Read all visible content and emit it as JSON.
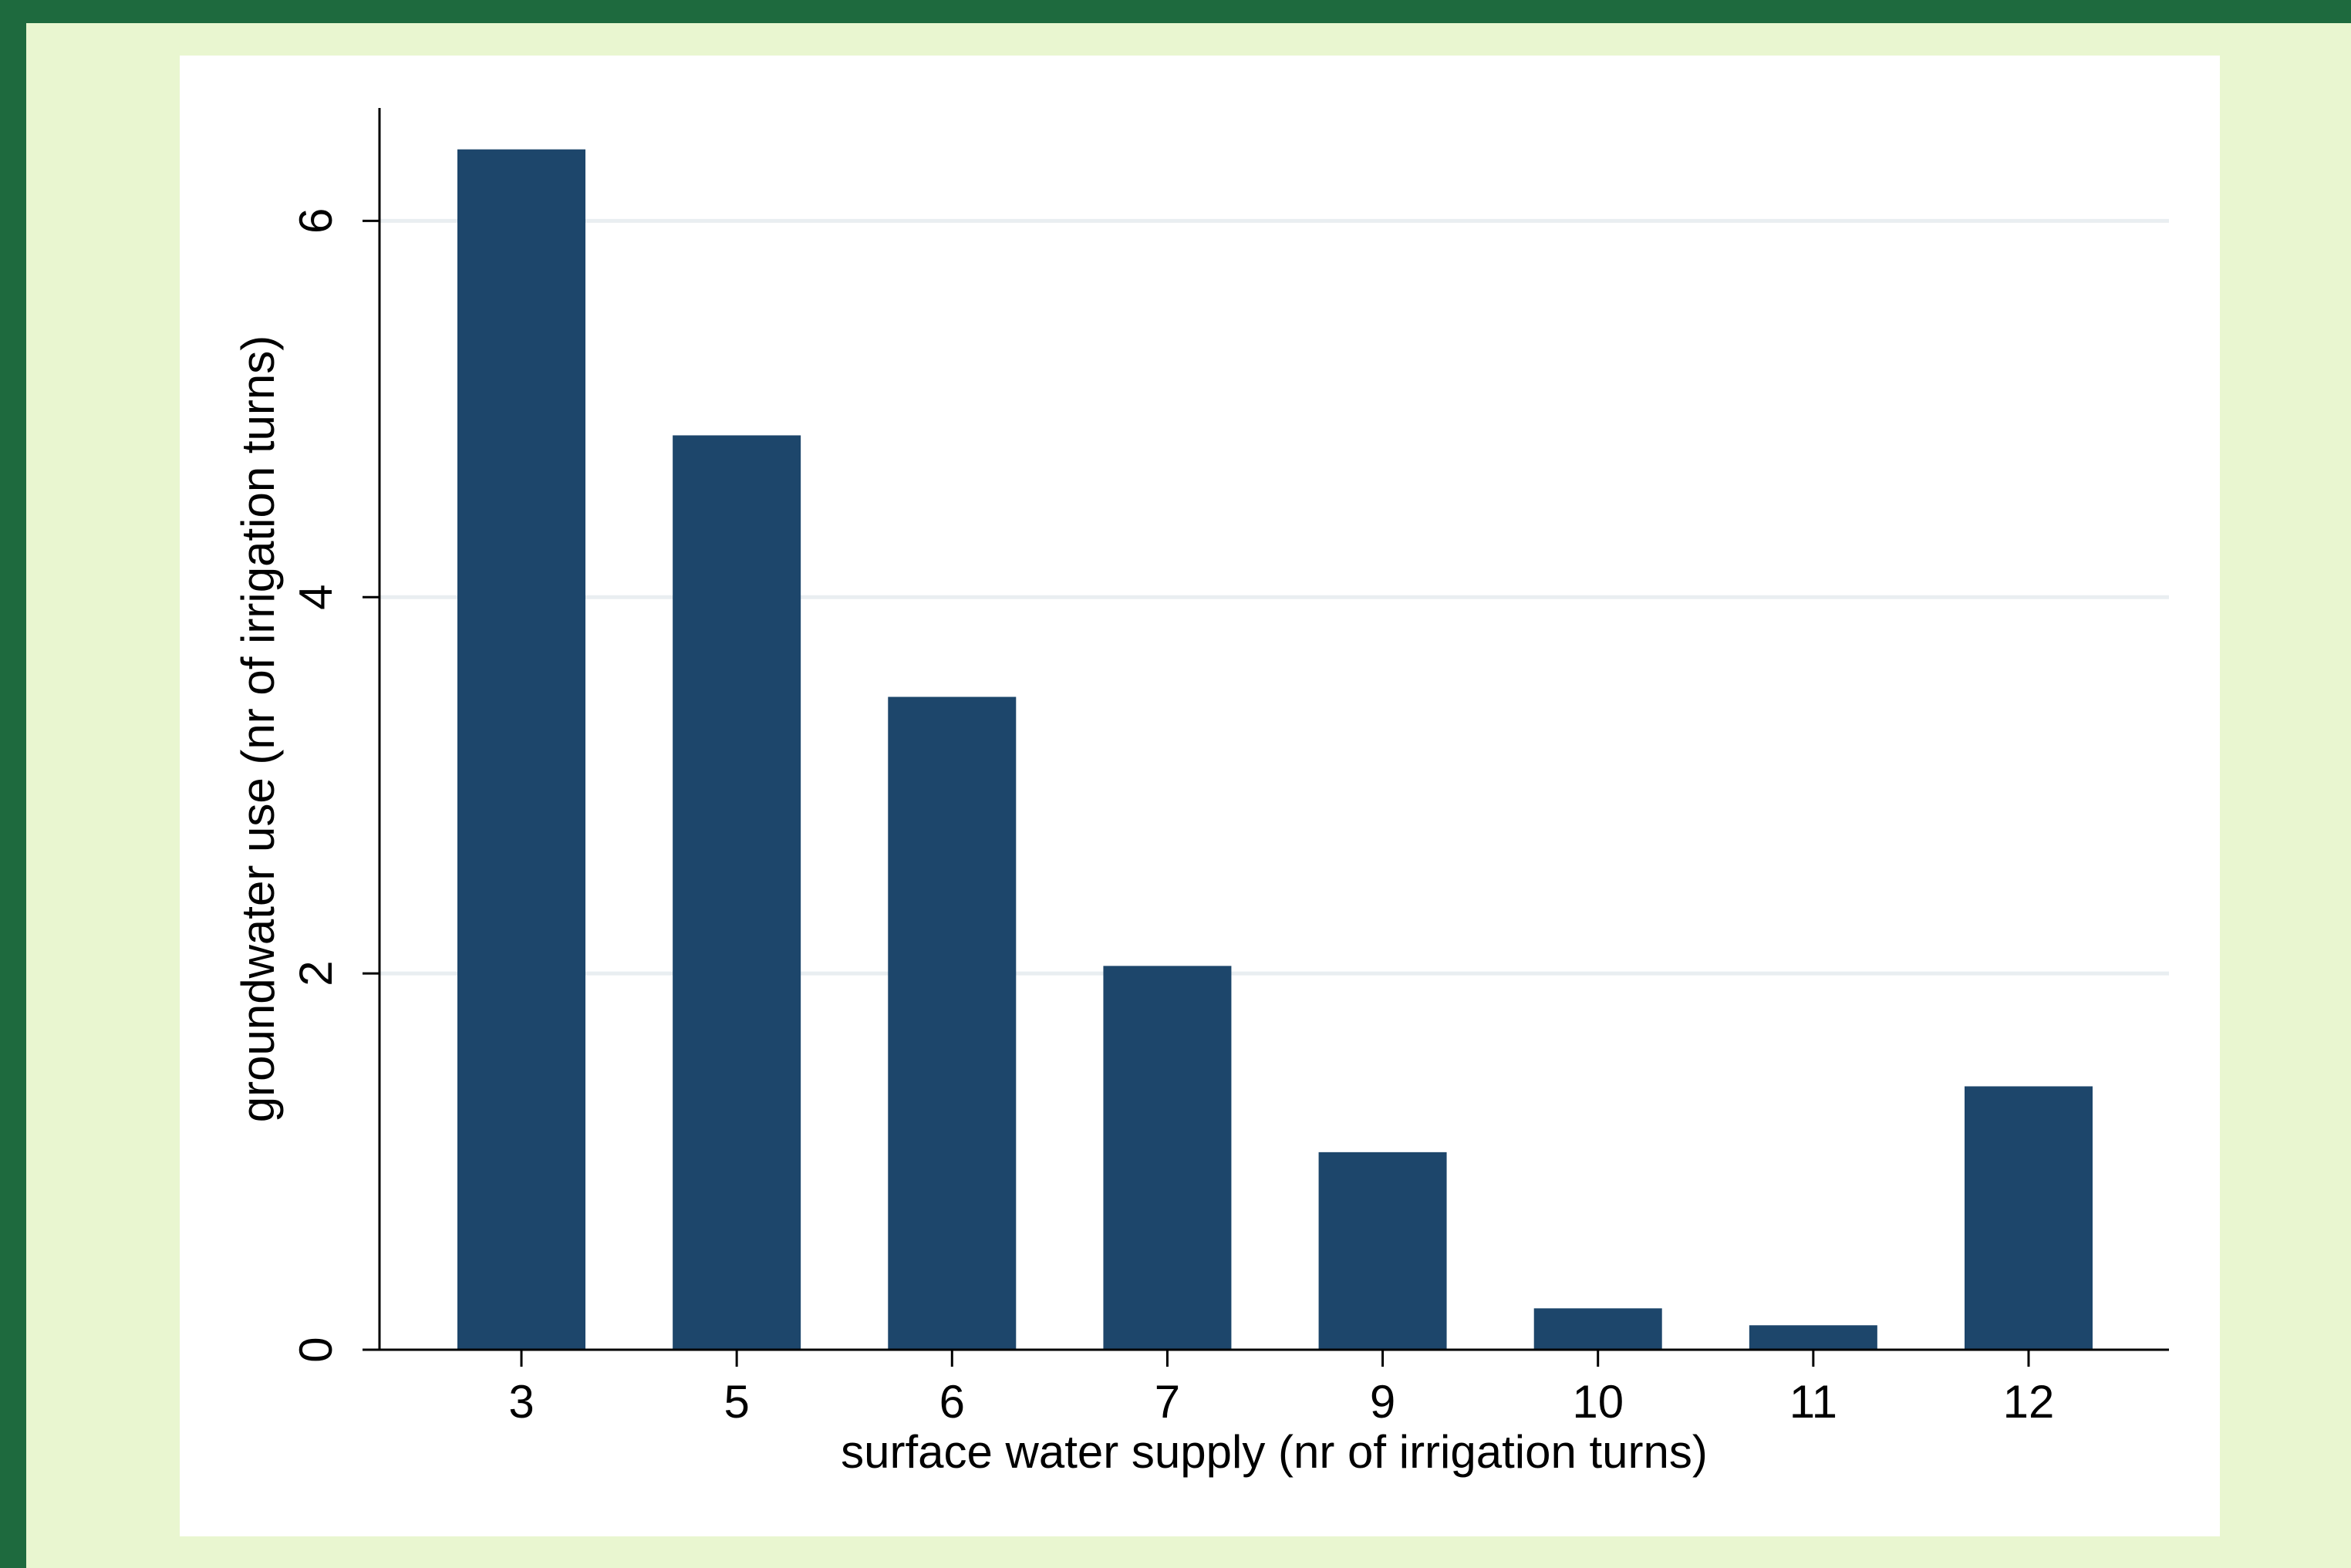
{
  "chart_data": {
    "type": "bar",
    "title": "",
    "xlabel": "surface water supply (nr of irrigation turns)",
    "ylabel": "groundwater use (nr of irrigation turns)",
    "categories": [
      "3",
      "5",
      "6",
      "7",
      "9",
      "10",
      "11",
      "12"
    ],
    "values": [
      6.38,
      4.86,
      3.47,
      2.04,
      1.05,
      0.22,
      0.13,
      1.4
    ],
    "ylim": [
      0,
      6.6
    ],
    "yticks": [
      "0",
      "2",
      "4",
      "6"
    ],
    "ytick_values": [
      0,
      2,
      4,
      6
    ],
    "grid": true,
    "colors": {
      "bar": "#1d466b",
      "grid": "#e9eef1",
      "axis": "#000000",
      "background": "#ffffff",
      "panel": "#e9f6d0",
      "frame": "#1e6a3e"
    }
  }
}
